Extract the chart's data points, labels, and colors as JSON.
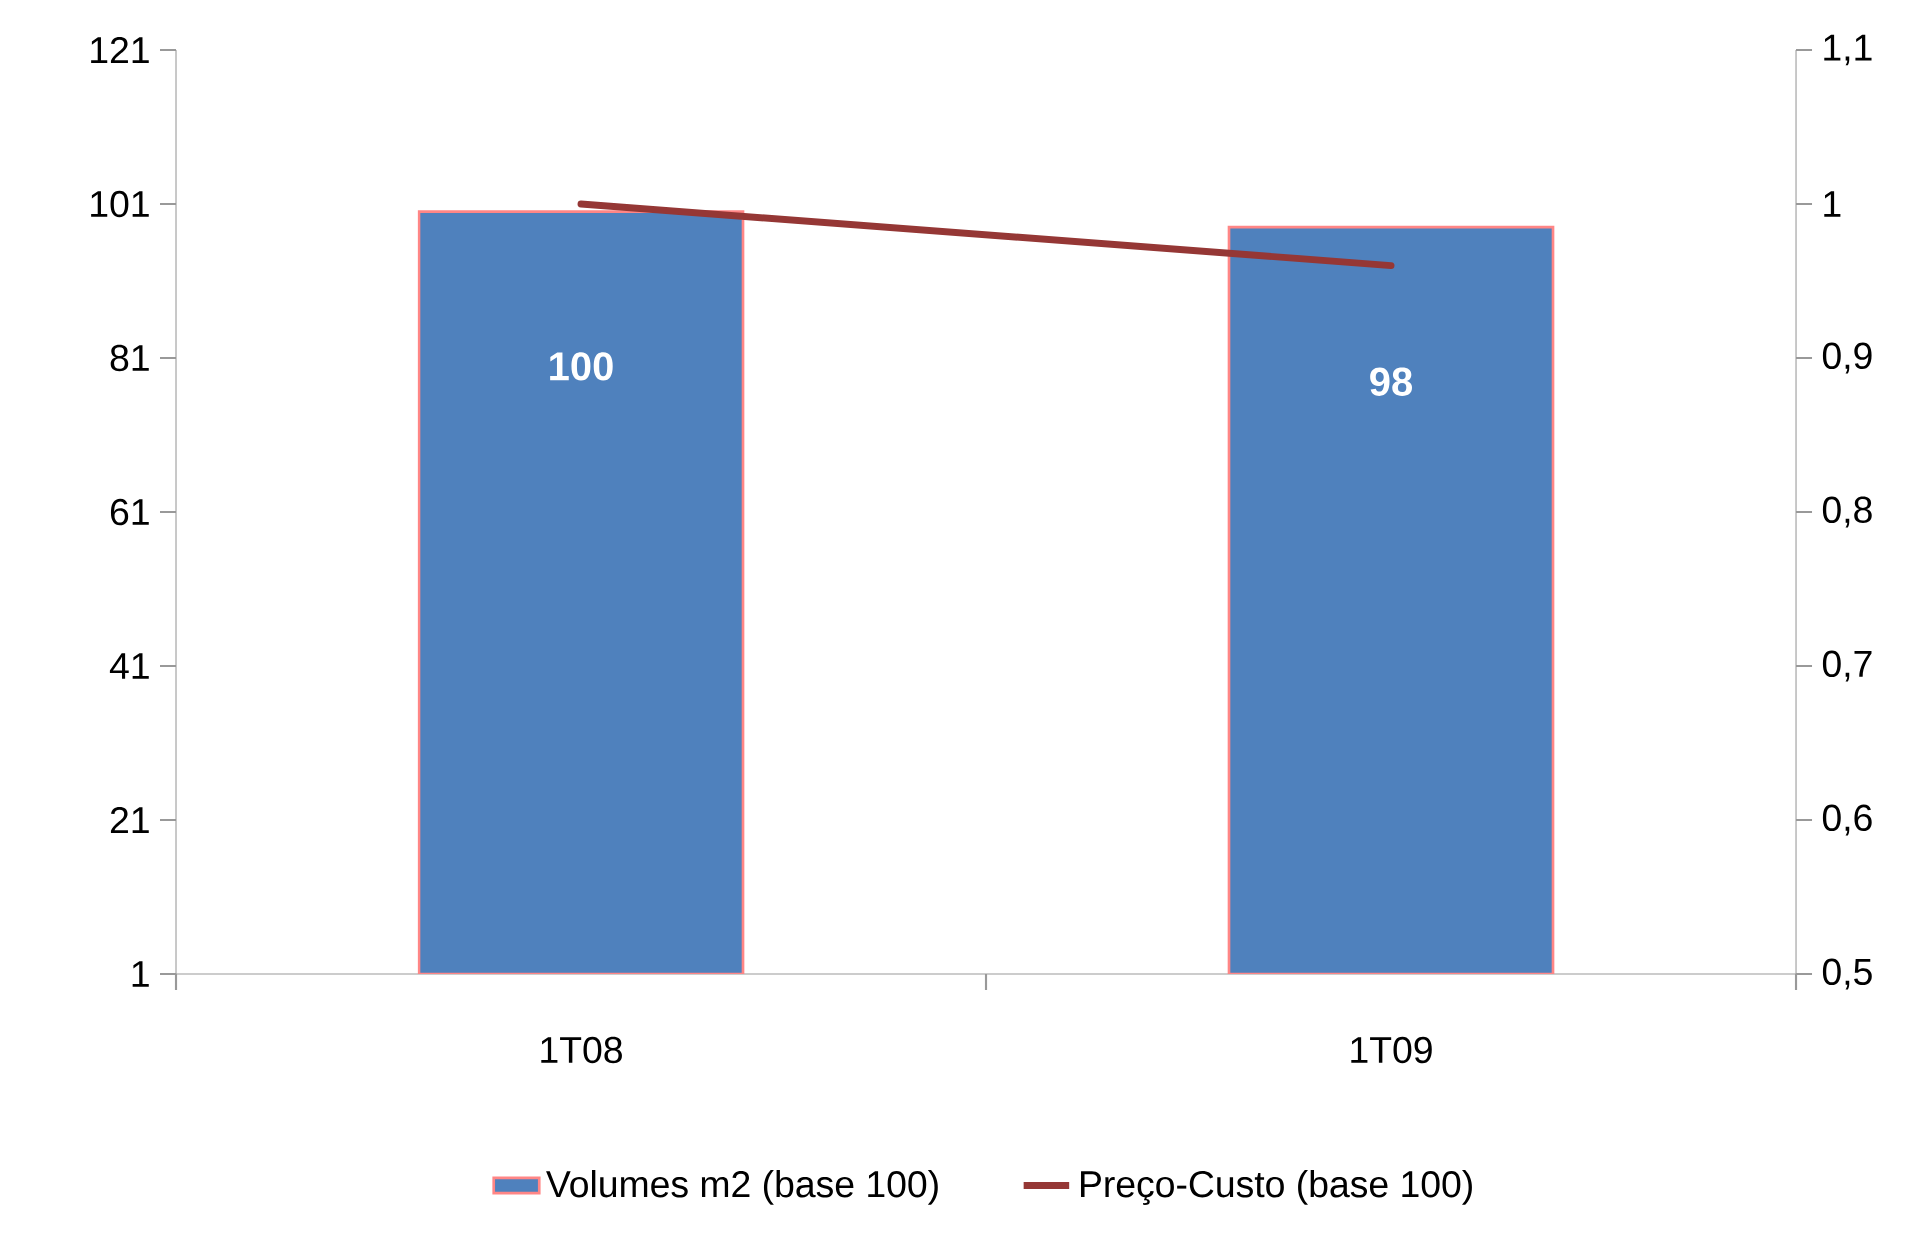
{
  "chart_data": {
    "type": "bar",
    "categories": [
      "1T08",
      "1T09"
    ],
    "series": [
      {
        "name": "Volumes m2 (base 100)",
        "color": "#4f81bd",
        "values": [
          100,
          98
        ],
        "value_labels": [
          "100",
          "98"
        ]
      },
      {
        "name": "Preço-Custo  (base 100)",
        "type": "line",
        "axis": "y2",
        "color": "#953735",
        "values": [
          1.0,
          0.96
        ]
      }
    ],
    "ylim": [
      1,
      121
    ],
    "yticks": [
      1,
      21,
      41,
      61,
      81,
      101,
      121
    ],
    "y2lim": [
      0.5,
      1.1
    ],
    "y2ticks": [
      {
        "value": 0.5,
        "label": "0,5"
      },
      {
        "value": 0.6,
        "label": "0,6"
      },
      {
        "value": 0.7,
        "label": "0,7"
      },
      {
        "value": 0.8,
        "label": "0,8"
      },
      {
        "value": 0.9,
        "label": "0,9"
      },
      1,
      {
        "value": 1.1,
        "label": "1,1"
      }
    ],
    "legend": "bottom"
  }
}
